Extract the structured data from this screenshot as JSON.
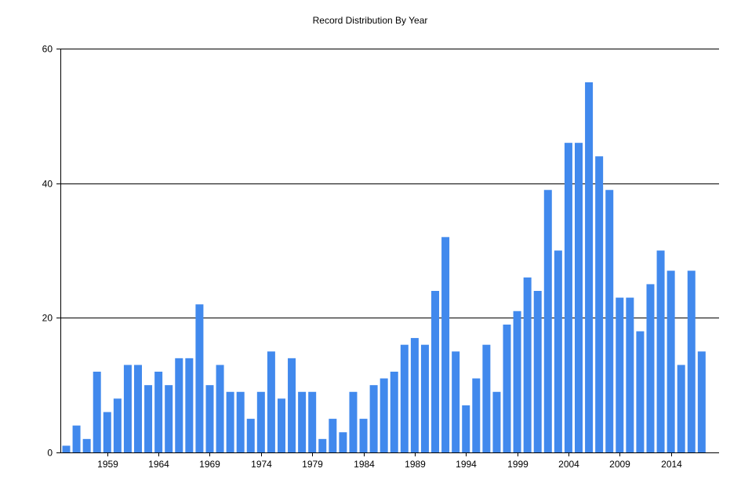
{
  "chart_data": {
    "type": "bar",
    "title": "Record Distribution By Year",
    "xlabel": "",
    "ylabel": "",
    "ylim": [
      0,
      60
    ],
    "yticks": [
      0,
      20,
      40,
      60
    ],
    "grid": true,
    "bar_color": "#4189ED",
    "x": [
      1955,
      1956,
      1957,
      1958,
      1959,
      1960,
      1961,
      1962,
      1963,
      1964,
      1965,
      1966,
      1967,
      1968,
      1969,
      1970,
      1971,
      1972,
      1973,
      1974,
      1975,
      1976,
      1977,
      1978,
      1979,
      1980,
      1981,
      1982,
      1983,
      1984,
      1985,
      1986,
      1987,
      1988,
      1989,
      1990,
      1991,
      1992,
      1993,
      1994,
      1995,
      1996,
      1997,
      1998,
      1999,
      2000,
      2001,
      2002,
      2003,
      2004,
      2005,
      2006,
      2007,
      2008,
      2009,
      2010,
      2011,
      2012,
      2013,
      2014,
      2015,
      2016,
      2017
    ],
    "xticks": [
      1959,
      1964,
      1969,
      1974,
      1979,
      1984,
      1989,
      1994,
      1999,
      2004,
      2009,
      2014
    ],
    "values": [
      1,
      4,
      2,
      12,
      6,
      8,
      13,
      13,
      10,
      12,
      10,
      14,
      14,
      22,
      10,
      13,
      9,
      9,
      5,
      9,
      15,
      8,
      14,
      9,
      9,
      2,
      5,
      3,
      9,
      5,
      10,
      11,
      12,
      16,
      17,
      16,
      24,
      32,
      15,
      7,
      11,
      16,
      9,
      19,
      21,
      26,
      24,
      39,
      30,
      46,
      46,
      55,
      44,
      39,
      23,
      23,
      18,
      25,
      30,
      27,
      13,
      27,
      15
    ]
  }
}
